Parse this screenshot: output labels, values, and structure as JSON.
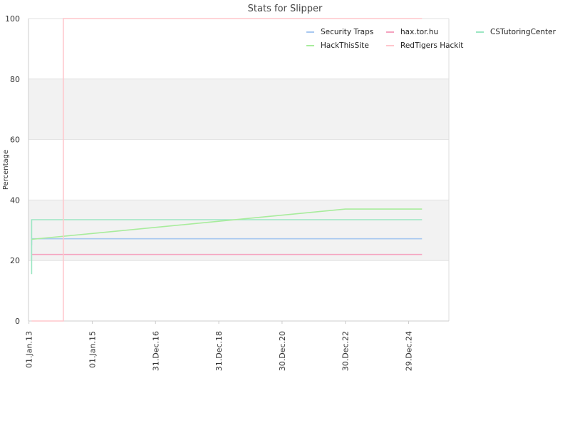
{
  "chart_data": {
    "type": "line",
    "title": "Stats for Slipper",
    "xlabel": "",
    "ylabel": "Percentage",
    "ylim": [
      0,
      100
    ],
    "xlim": [
      "2012-12-27",
      "2026-04-07"
    ],
    "y_ticks": [
      0,
      20,
      40,
      60,
      80,
      100
    ],
    "x_ticks": [
      {
        "date": "2013-01-01",
        "label": "01.Jan.13"
      },
      {
        "date": "2015-01-01",
        "label": "01.Jan.15"
      },
      {
        "date": "2016-12-31",
        "label": "31.Dec.16"
      },
      {
        "date": "2018-12-31",
        "label": "31.Dec.18"
      },
      {
        "date": "2020-12-30",
        "label": "30.Dec.20"
      },
      {
        "date": "2022-12-30",
        "label": "30.Dec.22"
      },
      {
        "date": "2024-12-29",
        "label": "29.Dec.24"
      }
    ],
    "grid": "horizontal bands",
    "legend_position": "top-right",
    "series": [
      {
        "name": "Security Traps",
        "color": "#a8c8f0",
        "points": [
          [
            "2013-02-01",
            25
          ],
          [
            "2013-02-01",
            27.2
          ],
          [
            "2025-06-01",
            27.2
          ]
        ]
      },
      {
        "name": "hax.tor.hu",
        "color": "#f5a3bf",
        "points": [
          [
            "2013-02-01",
            22
          ],
          [
            "2025-06-01",
            22
          ]
        ]
      },
      {
        "name": "CSTutoringCenter",
        "color": "#9be6c3",
        "points": [
          [
            "2013-02-01",
            15.5
          ],
          [
            "2013-02-01",
            33.5
          ],
          [
            "2025-06-01",
            33.5
          ]
        ]
      },
      {
        "name": "HackThisSite",
        "color": "#a8ec9c",
        "points": [
          [
            "2013-02-01",
            27
          ],
          [
            "2022-12-30",
            37
          ],
          [
            "2025-06-01",
            37
          ]
        ]
      },
      {
        "name": "RedTigers Hackit",
        "color": "#ffc6cc",
        "points": [
          [
            "2013-02-01",
            0
          ],
          [
            "2014-02-01",
            0
          ],
          [
            "2014-02-01",
            100
          ],
          [
            "2025-06-01",
            100
          ]
        ]
      }
    ]
  }
}
